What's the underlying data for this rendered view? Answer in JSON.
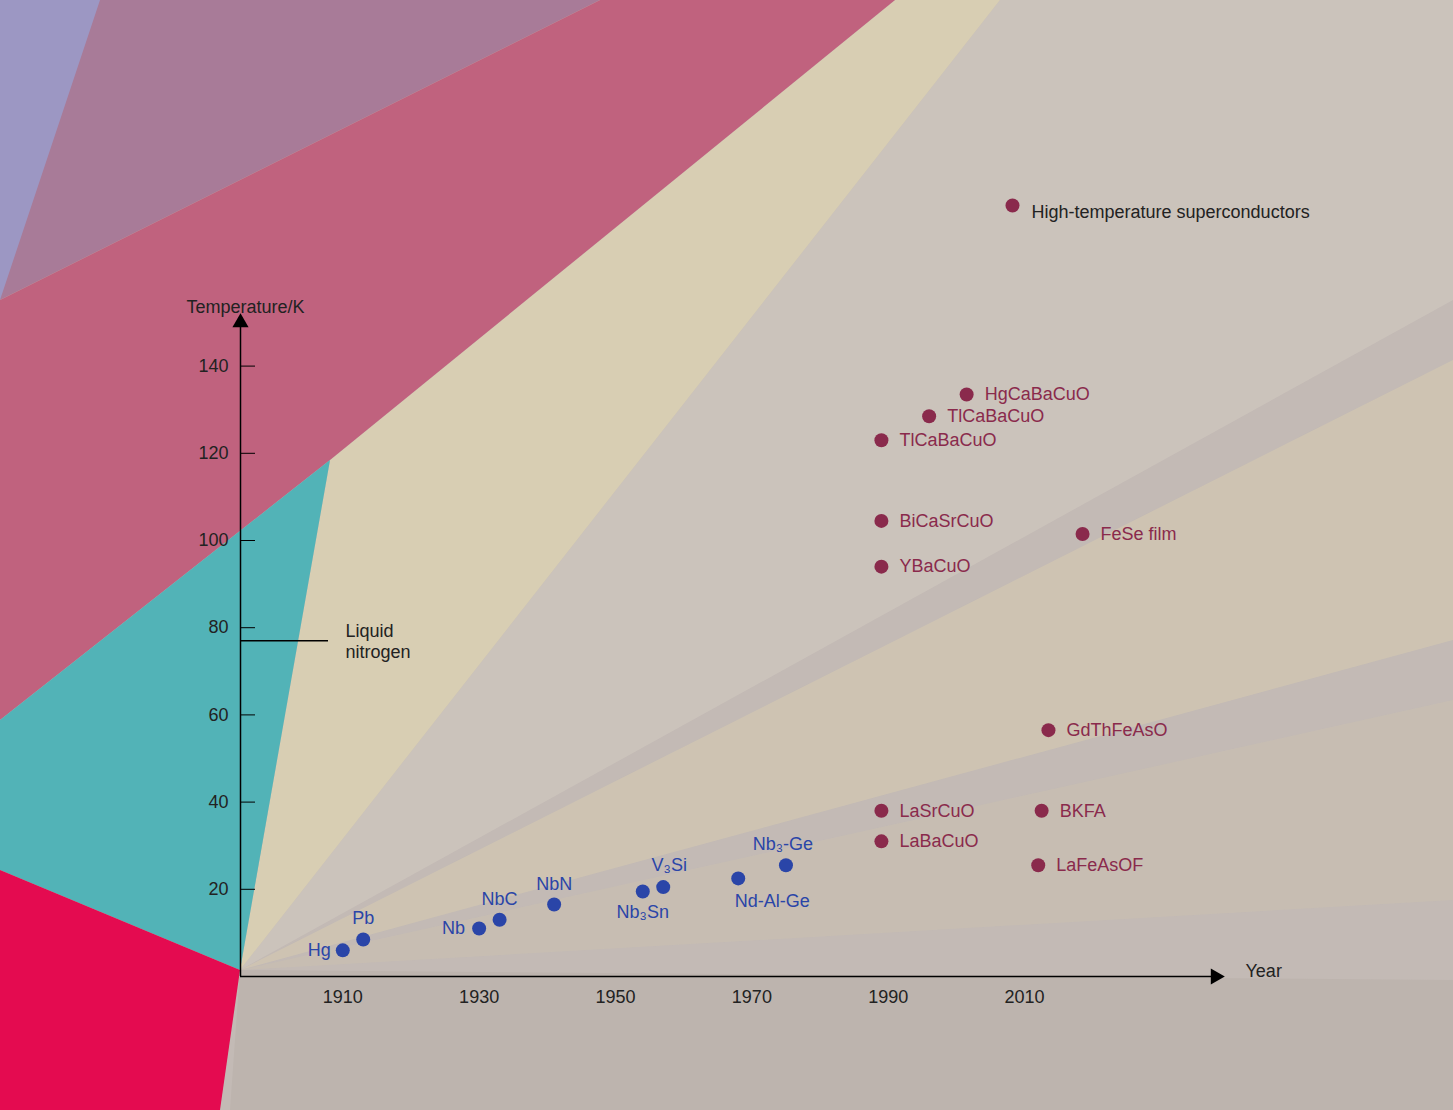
{
  "chart_data": {
    "type": "scatter",
    "xlabel": "Year",
    "ylabel": "Temperature/K",
    "xlim": [
      1895,
      2038
    ],
    "ylim": [
      0,
      150
    ],
    "xticks": [
      1910,
      1930,
      1950,
      1970,
      1990,
      2010
    ],
    "yticks": [
      20,
      40,
      60,
      80,
      100,
      120,
      140
    ],
    "legend": "top-right",
    "series": [
      {
        "name": null,
        "color": "#2a45a8",
        "x": [
          1910,
          1913,
          1930,
          1933,
          1941,
          1954,
          1957,
          1968,
          1975
        ],
        "values": [
          6,
          8.5,
          11,
          13,
          16.5,
          19.5,
          20.5,
          22.5,
          25.5
        ],
        "labels": [
          "Hg",
          "Pb",
          "Nb",
          "NbC",
          "NbN",
          "Nb₃Sn",
          "V₃Si",
          "Nd-Al-Ge",
          "Nb₃-Ge"
        ]
      },
      {
        "name": "High-temperature superconductors",
        "color": "#8a2a4c",
        "x": [
          1989,
          1989,
          1989,
          1989,
          1989,
          1996,
          2001.5,
          2018.5,
          2013.5,
          2012.5,
          2012
        ],
        "values": [
          31,
          38,
          94,
          104.5,
          123,
          128.5,
          133.5,
          101.5,
          56.5,
          38,
          25.5
        ],
        "labels": [
          "LaBaCuO",
          "LaSrCuO",
          "YBaCuO",
          "BiCaSrCuO",
          "TlCaBaCuO",
          "TlCaBaCuO",
          "HgCaBaCuO",
          "FeSe film",
          "GdThFeAsO",
          "BKFA",
          "LaFeAsOF"
        ]
      }
    ],
    "annotations": [
      {
        "text": "Liquid nitrogen",
        "y": 77
      }
    ]
  }
}
